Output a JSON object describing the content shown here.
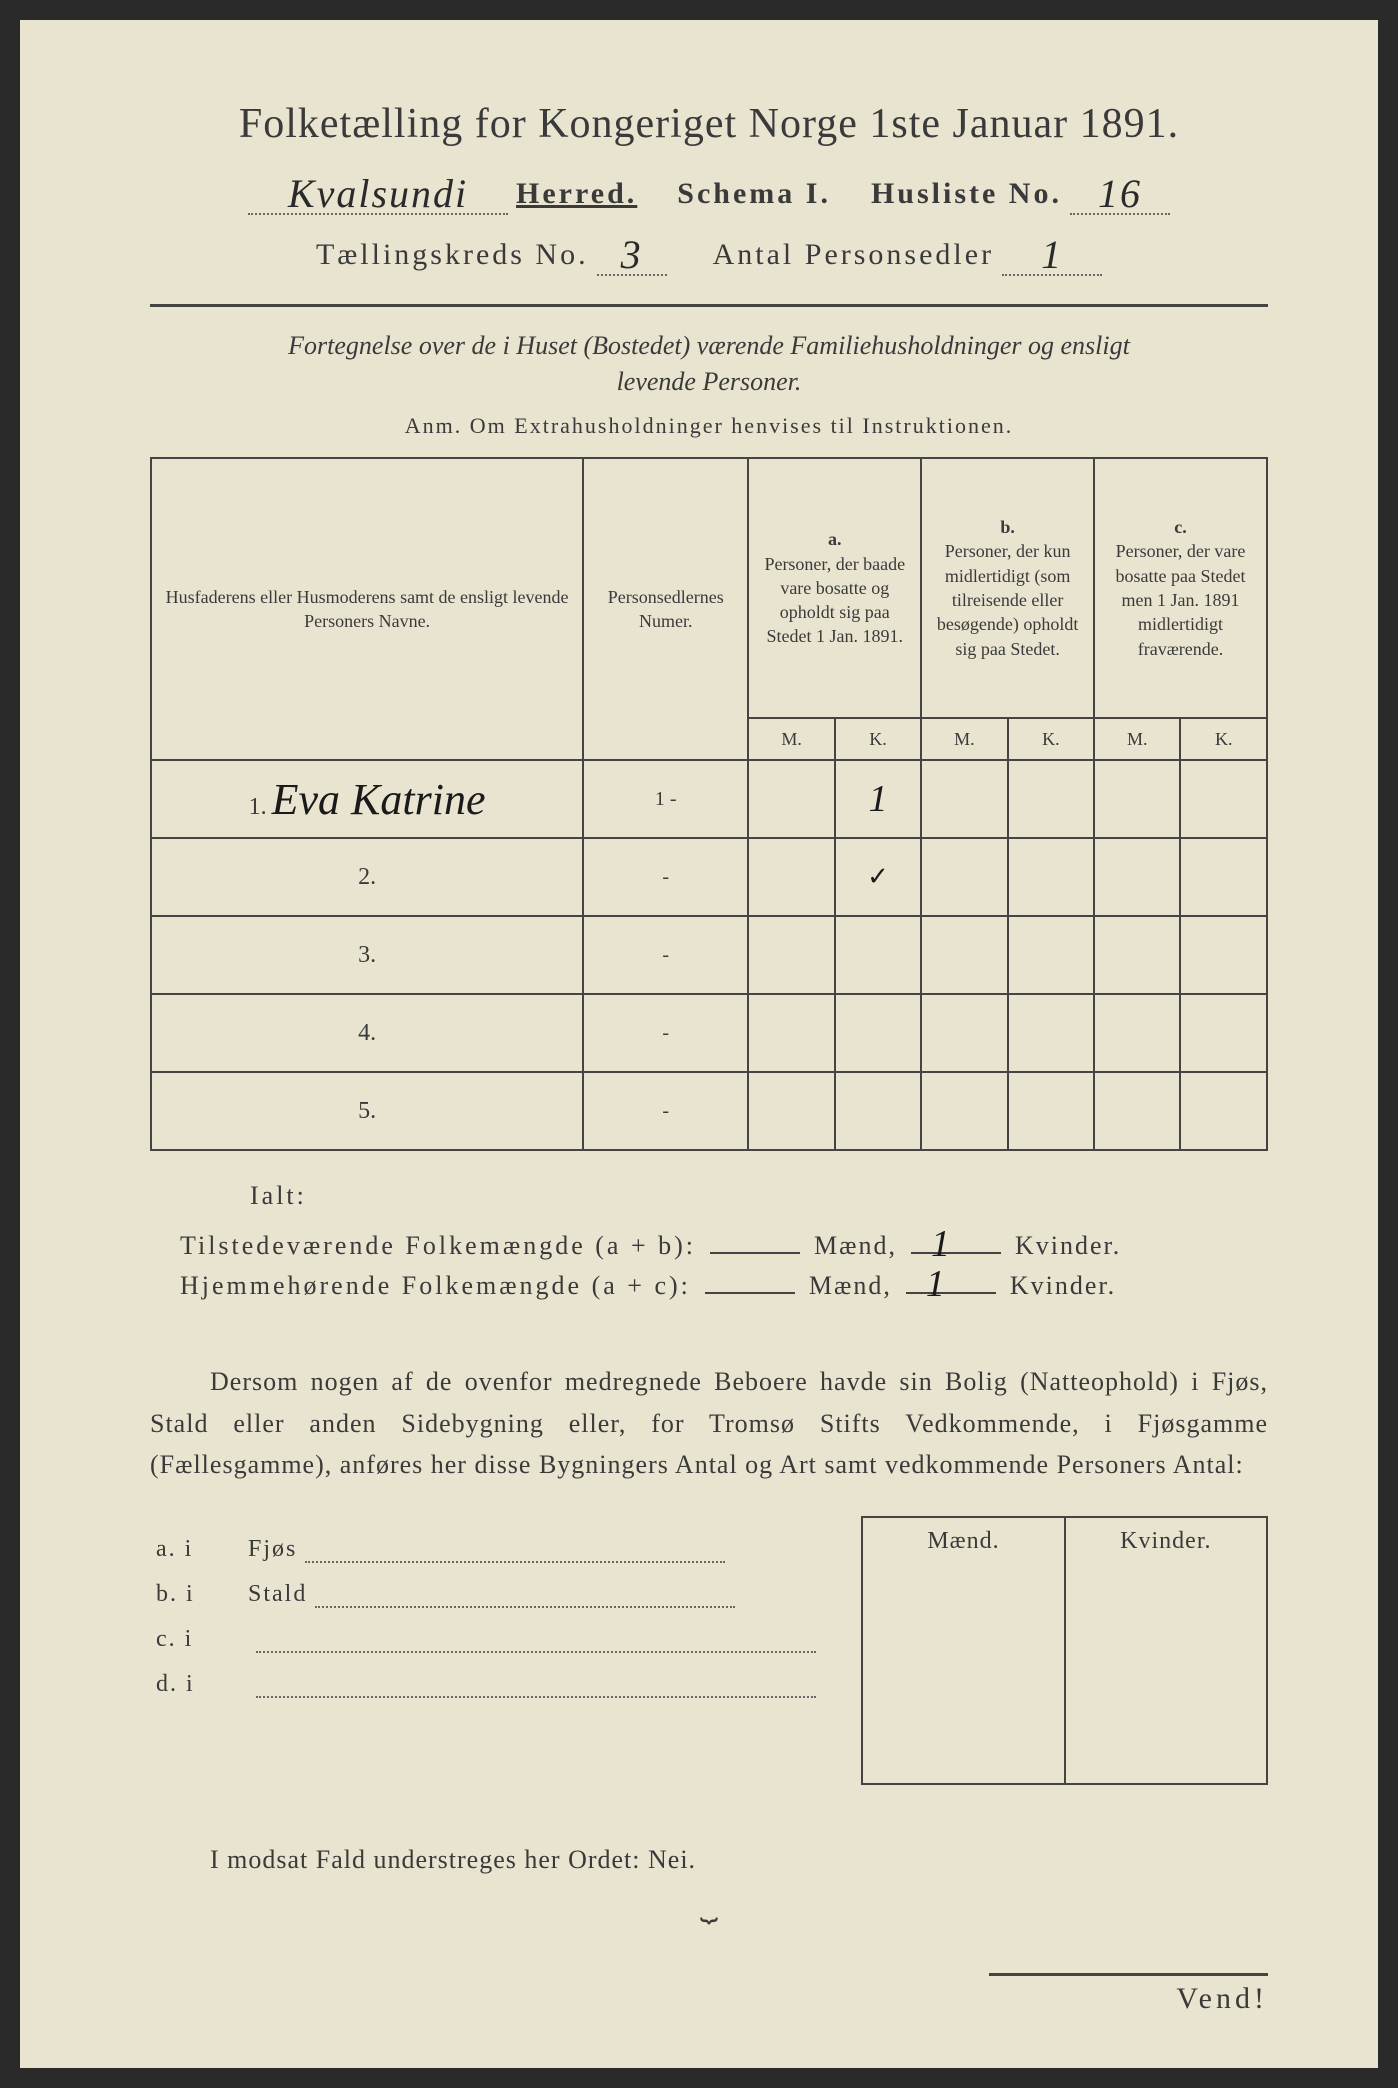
{
  "title": "Folketælling for Kongeriget Norge 1ste Januar 1891.",
  "header": {
    "district_handwritten": "Kvalsundi",
    "herred_label": "Herred.",
    "schema_label": "Schema I.",
    "husliste_label": "Husliste No.",
    "husliste_no": "16",
    "tellingskreds_label": "Tællingskreds No.",
    "tellingskreds_no": "3",
    "antal_label": "Antal Personsedler",
    "antal_value": "1"
  },
  "subtitle_line1": "Fortegnelse over de i Huset (Bostedet) værende Familiehusholdninger og ensligt",
  "subtitle_line2": "levende Personer.",
  "anm": "Anm.  Om Extrahusholdninger henvises til Instruktionen.",
  "columns": {
    "col1": "Husfaderens eller Husmoderens samt de ensligt levende Personers Navne.",
    "col2": "Personsedlernes Numer.",
    "colA_letter": "a.",
    "colA": "Personer, der baade vare bosatte og opholdt sig paa Stedet 1 Jan. 1891.",
    "colB_letter": "b.",
    "colB": "Personer, der kun midlertidigt (som tilreisende eller besøgende) opholdt sig paa Stedet.",
    "colC_letter": "c.",
    "colC": "Personer, der vare bosatte paa Stedet men 1 Jan. 1891 midlertidigt fraværende.",
    "M": "M.",
    "K": "K."
  },
  "rows": [
    {
      "n": "1.",
      "name": "Eva Katrine",
      "sedler": "1 -",
      "aM": "",
      "aK": "1",
      "bM": "",
      "bK": "",
      "cM": "",
      "cK": ""
    },
    {
      "n": "2.",
      "name": "",
      "sedler": "-",
      "aM": "",
      "aK": "✓",
      "bM": "",
      "bK": "",
      "cM": "",
      "cK": ""
    },
    {
      "n": "3.",
      "name": "",
      "sedler": "-",
      "aM": "",
      "aK": "",
      "bM": "",
      "bK": "",
      "cM": "",
      "cK": ""
    },
    {
      "n": "4.",
      "name": "",
      "sedler": "-",
      "aM": "",
      "aK": "",
      "bM": "",
      "bK": "",
      "cM": "",
      "cK": ""
    },
    {
      "n": "5.",
      "name": "",
      "sedler": "-",
      "aM": "",
      "aK": "",
      "bM": "",
      "bK": "",
      "cM": "",
      "cK": ""
    }
  ],
  "ialt": "Ialt:",
  "summary": {
    "line1_label": "Tilstedeværende Folkemængde (a + b):",
    "line2_label": "Hjemmehørende Folkemængde (a + c):",
    "maend": "Mænd,",
    "kvinder": "Kvinder.",
    "val1_m": "",
    "val1_k": "1",
    "val2_m": "",
    "val2_k": "1"
  },
  "body_text": "Dersom nogen af de ovenfor medregnede Beboere havde sin Bolig (Natteophold) i Fjøs, Stald eller anden Sidebygning eller, for Tromsø Stifts Vedkommende, i Fjøsgamme (Fællesgamme), anføres her disse Bygningers Antal og Art samt vedkommende Personers Antal:",
  "sidebyg": {
    "a": "a.  i",
    "a_label": "Fjøs",
    "b": "b.  i",
    "b_label": "Stald",
    "c": "c.  i",
    "d": "d.  i",
    "maend": "Mænd.",
    "kvinder": "Kvinder."
  },
  "nei_line": "I modsat Fald understreges her Ordet: Nei.",
  "vend": "Vend!"
}
